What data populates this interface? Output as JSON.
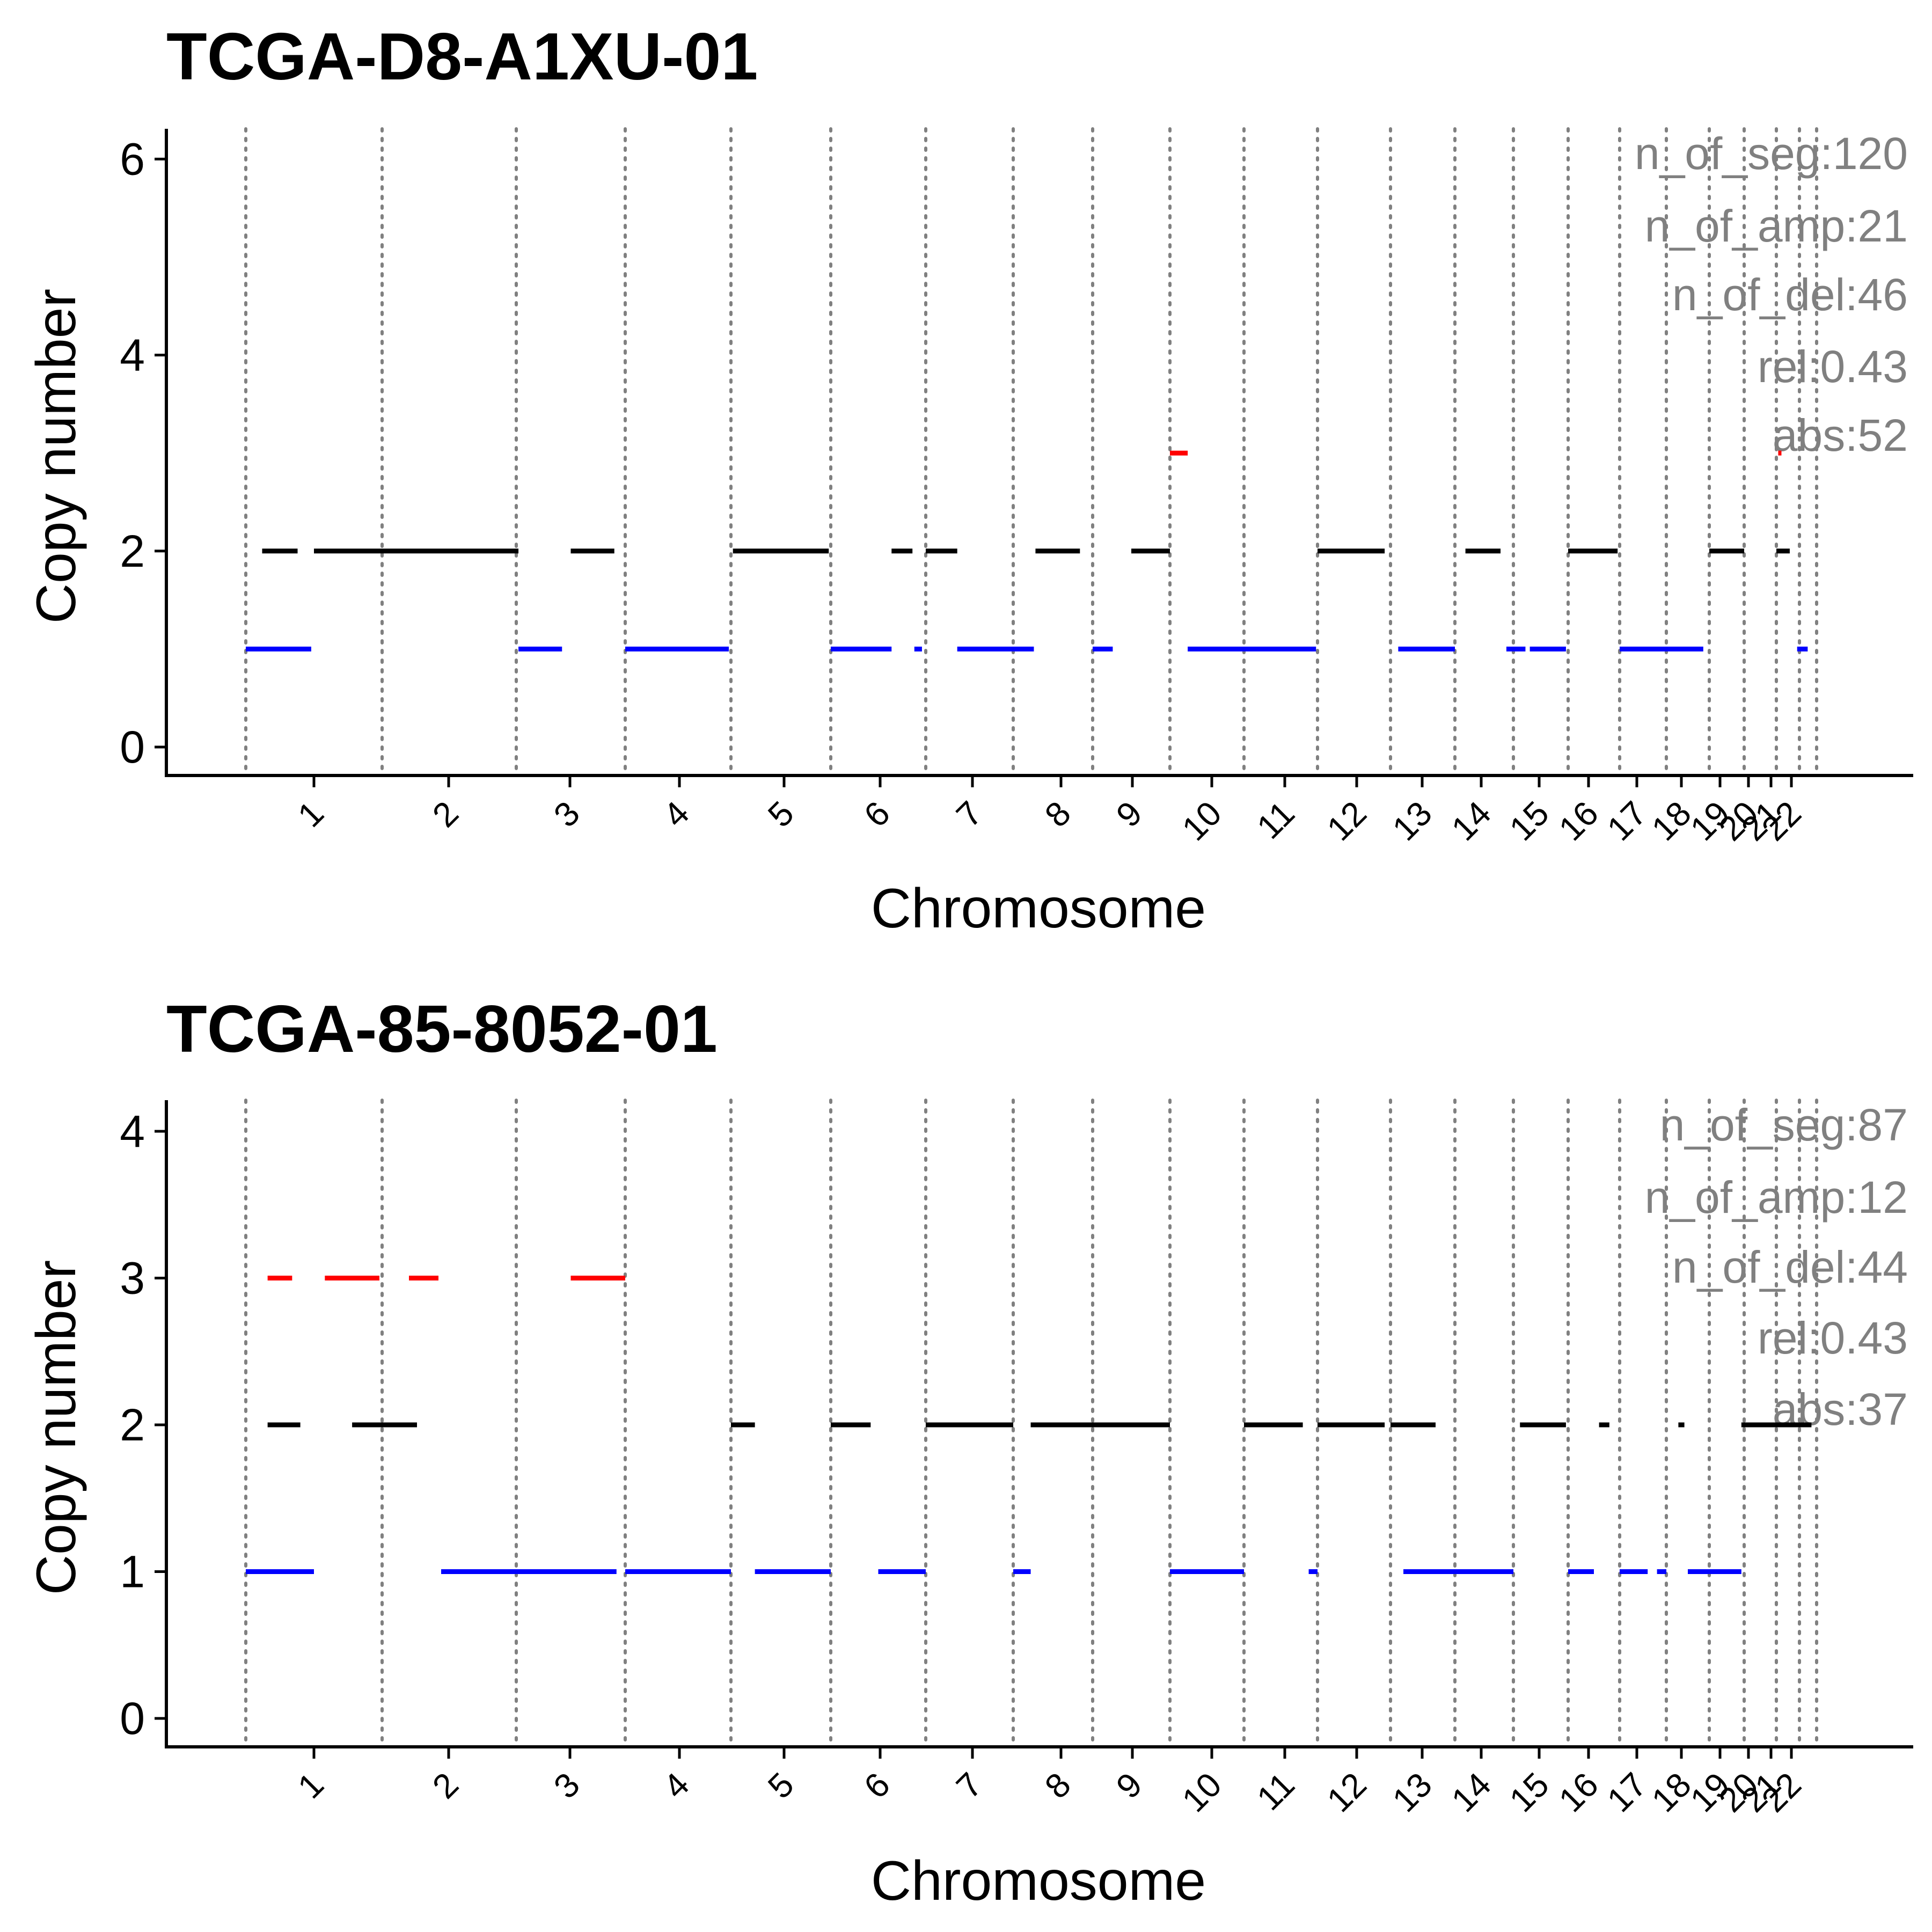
{
  "colors": {
    "amp": "#FF0000",
    "neutral": "#000000",
    "del": "#0000FF",
    "annotation": "#808080",
    "boundary": "#808080"
  },
  "chart_data": [
    {
      "type": "segment",
      "title": "TCGA-D8-A1XU-01",
      "xlabel": "Chromosome",
      "ylabel": "Copy number",
      "ylim": [
        -0.3,
        6.3
      ],
      "yticks": [
        0,
        2,
        4,
        6
      ],
      "grid": false,
      "legend": "none",
      "chromosome_labels": [
        "1",
        "2",
        "3",
        "4",
        "5",
        "6",
        "7",
        "8",
        "9",
        "10",
        "11",
        "12",
        "13",
        "14",
        "15",
        "16",
        "17",
        "18",
        "19",
        "20",
        "21",
        "22"
      ],
      "annotations": [
        "n_of_seg:120",
        "n_of_amp:21",
        "n_of_del:46",
        "rel:0.43",
        "abs:52"
      ],
      "segments": [
        {
          "x0": 0.5,
          "x1": 0.98,
          "y": 1,
          "type": "del"
        },
        {
          "x0": 1.0,
          "x1": 2.52,
          "y": 2,
          "type": "neutral"
        },
        {
          "x0": 0.62,
          "x1": 0.88,
          "y": 2,
          "type": "neutral"
        },
        {
          "x0": 2.52,
          "x1": 2.92,
          "y": 1,
          "type": "del"
        },
        {
          "x0": 3.0,
          "x1": 3.4,
          "y": 2,
          "type": "neutral"
        },
        {
          "x0": 3.5,
          "x1": 4.48,
          "y": 1,
          "type": "del"
        },
        {
          "x0": 4.52,
          "x1": 5.48,
          "y": 2,
          "type": "neutral"
        },
        {
          "x0": 5.5,
          "x1": 6.14,
          "y": 1,
          "type": "del"
        },
        {
          "x0": 6.38,
          "x1": 6.46,
          "y": 1,
          "type": "del"
        },
        {
          "x0": 6.14,
          "x1": 6.36,
          "y": 2,
          "type": "neutral"
        },
        {
          "x0": 6.5,
          "x1": 6.86,
          "y": 2,
          "type": "neutral"
        },
        {
          "x0": 6.86,
          "x1": 7.76,
          "y": 1,
          "type": "del"
        },
        {
          "x0": 7.78,
          "x1": 8.34,
          "y": 2,
          "type": "neutral"
        },
        {
          "x0": 8.5,
          "x1": 8.76,
          "y": 1,
          "type": "del"
        },
        {
          "x0": 9.0,
          "x1": 9.5,
          "y": 2,
          "type": "neutral"
        },
        {
          "x0": 9.5,
          "x1": 9.74,
          "y": 3,
          "type": "amp"
        },
        {
          "x0": 9.74,
          "x1": 11.48,
          "y": 1,
          "type": "del"
        },
        {
          "x0": 11.5,
          "x1": 12.42,
          "y": 2,
          "type": "neutral"
        },
        {
          "x0": 12.62,
          "x1": 13.5,
          "y": 1,
          "type": "del"
        },
        {
          "x0": 13.68,
          "x1": 14.28,
          "y": 2,
          "type": "neutral"
        },
        {
          "x0": 14.38,
          "x1": 14.72,
          "y": 1,
          "type": "del"
        },
        {
          "x0": 14.8,
          "x1": 15.46,
          "y": 1,
          "type": "del"
        },
        {
          "x0": 15.5,
          "x1": 16.46,
          "y": 2,
          "type": "neutral"
        },
        {
          "x0": 16.5,
          "x1": 18.36,
          "y": 1,
          "type": "del"
        },
        {
          "x0": 18.5,
          "x1": 19.5,
          "y": 2,
          "type": "neutral"
        },
        {
          "x0": 20.5,
          "x1": 21.08,
          "y": 2,
          "type": "neutral"
        },
        {
          "x0": 21.4,
          "x1": 21.98,
          "y": 1,
          "type": "del"
        },
        {
          "x0": 20.58,
          "x1": 20.72,
          "y": 3,
          "type": "amp"
        }
      ]
    },
    {
      "type": "segment",
      "title": "TCGA-85-8052-01",
      "xlabel": "Chromosome",
      "ylabel": "Copy number",
      "ylim": [
        -0.2,
        4.2
      ],
      "yticks": [
        0,
        1,
        2,
        3,
        4
      ],
      "grid": false,
      "legend": "none",
      "chromosome_labels": [
        "1",
        "2",
        "3",
        "4",
        "5",
        "6",
        "7",
        "8",
        "9",
        "10",
        "11",
        "12",
        "13",
        "14",
        "15",
        "16",
        "17",
        "18",
        "19",
        "20",
        "21",
        "22"
      ],
      "annotations": [
        "n_of_seg:87",
        "n_of_amp:12",
        "n_of_del:44",
        "rel:0.43",
        "abs:37"
      ],
      "segments": [
        {
          "x0": 0.5,
          "x1": 1.0,
          "y": 1,
          "type": "del"
        },
        {
          "x0": 0.66,
          "x1": 0.9,
          "y": 2,
          "type": "neutral"
        },
        {
          "x0": 0.66,
          "x1": 0.84,
          "y": 3,
          "type": "amp"
        },
        {
          "x0": 1.08,
          "x1": 1.48,
          "y": 3,
          "type": "amp"
        },
        {
          "x0": 1.7,
          "x1": 1.92,
          "y": 3,
          "type": "amp"
        },
        {
          "x0": 1.28,
          "x1": 1.76,
          "y": 2,
          "type": "neutral"
        },
        {
          "x0": 1.94,
          "x1": 3.42,
          "y": 1,
          "type": "del"
        },
        {
          "x0": 3.0,
          "x1": 3.5,
          "y": 3,
          "type": "amp"
        },
        {
          "x0": 3.5,
          "x1": 4.5,
          "y": 1,
          "type": "del"
        },
        {
          "x0": 4.5,
          "x1": 4.74,
          "y": 2,
          "type": "neutral"
        },
        {
          "x0": 4.74,
          "x1": 5.5,
          "y": 1,
          "type": "del"
        },
        {
          "x0": 5.5,
          "x1": 5.92,
          "y": 2,
          "type": "neutral"
        },
        {
          "x0": 6.0,
          "x1": 6.5,
          "y": 1,
          "type": "del"
        },
        {
          "x0": 6.5,
          "x1": 7.5,
          "y": 2,
          "type": "neutral"
        },
        {
          "x0": 7.5,
          "x1": 7.72,
          "y": 1,
          "type": "del"
        },
        {
          "x0": 7.72,
          "x1": 9.5,
          "y": 2,
          "type": "neutral"
        },
        {
          "x0": 9.5,
          "x1": 10.5,
          "y": 1,
          "type": "del"
        },
        {
          "x0": 10.5,
          "x1": 11.3,
          "y": 2,
          "type": "neutral"
        },
        {
          "x0": 11.38,
          "x1": 11.5,
          "y": 1,
          "type": "del"
        },
        {
          "x0": 11.5,
          "x1": 12.42,
          "y": 2,
          "type": "neutral"
        },
        {
          "x0": 12.5,
          "x1": 13.2,
          "y": 2,
          "type": "neutral"
        },
        {
          "x0": 12.7,
          "x1": 14.5,
          "y": 1,
          "type": "del"
        },
        {
          "x0": 14.62,
          "x1": 15.46,
          "y": 2,
          "type": "neutral"
        },
        {
          "x0": 15.5,
          "x1": 16.0,
          "y": 1,
          "type": "del"
        },
        {
          "x0": 16.1,
          "x1": 16.3,
          "y": 2,
          "type": "neutral"
        },
        {
          "x0": 16.5,
          "x1": 17.1,
          "y": 1,
          "type": "del"
        },
        {
          "x0": 17.3,
          "x1": 17.5,
          "y": 1,
          "type": "del"
        },
        {
          "x0": 17.78,
          "x1": 17.92,
          "y": 2,
          "type": "neutral"
        },
        {
          "x0": 18.0,
          "x1": 19.42,
          "y": 1,
          "type": "del"
        },
        {
          "x0": 19.42,
          "x1": 22.2,
          "y": 2,
          "type": "neutral"
        }
      ]
    }
  ]
}
